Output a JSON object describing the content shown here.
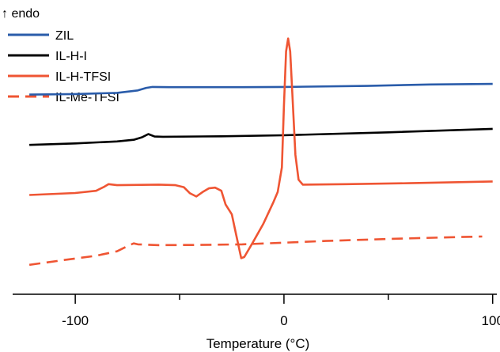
{
  "chart_data": {
    "type": "line",
    "title": "",
    "xlabel": "Temperature (°C)",
    "ylabel": "",
    "annotation": "↑ endo",
    "xlim": [
      -130,
      102
    ],
    "ylim": [
      0,
      10
    ],
    "y_axis_visible": false,
    "grid": false,
    "legend_position": "top-left",
    "xticks": [
      -100,
      0,
      100
    ],
    "xtick_labels": [
      "-100",
      "0",
      "100"
    ],
    "minor_xticks": [
      -50,
      50
    ],
    "series": [
      {
        "name": "ZIL",
        "color": "#2a5caa",
        "dash": "solid",
        "points": [
          [
            -122,
            7.45
          ],
          [
            -100,
            7.47
          ],
          [
            -80,
            7.52
          ],
          [
            -70,
            7.62
          ],
          [
            -66,
            7.72
          ],
          [
            -63,
            7.76
          ],
          [
            -55,
            7.75
          ],
          [
            -20,
            7.75
          ],
          [
            0,
            7.76
          ],
          [
            40,
            7.8
          ],
          [
            70,
            7.86
          ],
          [
            100,
            7.88
          ]
        ]
      },
      {
        "name": "IL-H-I",
        "color": "#000000",
        "dash": "solid",
        "points": [
          [
            -122,
            5.41
          ],
          [
            -100,
            5.47
          ],
          [
            -80,
            5.55
          ],
          [
            -72,
            5.62
          ],
          [
            -68,
            5.72
          ],
          [
            -65,
            5.85
          ],
          [
            -62,
            5.75
          ],
          [
            -58,
            5.74
          ],
          [
            -30,
            5.76
          ],
          [
            0,
            5.8
          ],
          [
            50,
            5.92
          ],
          [
            100,
            6.06
          ]
        ]
      },
      {
        "name": "IL-H-TFSI",
        "color": "#ef5533",
        "dash": "solid",
        "points": [
          [
            -122,
            3.38
          ],
          [
            -100,
            3.46
          ],
          [
            -90,
            3.55
          ],
          [
            -86,
            3.72
          ],
          [
            -84,
            3.82
          ],
          [
            -80,
            3.78
          ],
          [
            -60,
            3.8
          ],
          [
            -52,
            3.78
          ],
          [
            -48,
            3.7
          ],
          [
            -45,
            3.45
          ],
          [
            -42,
            3.32
          ],
          [
            -39,
            3.5
          ],
          [
            -36,
            3.65
          ],
          [
            -33,
            3.68
          ],
          [
            -30,
            3.55
          ],
          [
            -28,
            3.0
          ],
          [
            -25,
            2.6
          ],
          [
            -23,
            1.8
          ],
          [
            -20.5,
            0.82
          ],
          [
            -19,
            0.87
          ],
          [
            -15,
            1.45
          ],
          [
            -10,
            2.2
          ],
          [
            -5,
            3.1
          ],
          [
            -3,
            3.5
          ],
          [
            -1,
            4.5
          ],
          [
            0,
            7.0
          ],
          [
            1,
            9.2
          ],
          [
            2,
            9.72
          ],
          [
            3,
            9.2
          ],
          [
            4,
            7.5
          ],
          [
            5.5,
            5.0
          ],
          [
            7,
            4.0
          ],
          [
            9,
            3.8
          ],
          [
            30,
            3.82
          ],
          [
            60,
            3.86
          ],
          [
            100,
            3.93
          ]
        ]
      },
      {
        "name": "IL-Me-TFSI",
        "color": "#ef5533",
        "dash": "dashed",
        "points": [
          [
            -122,
            0.55
          ],
          [
            -105,
            0.75
          ],
          [
            -90,
            0.92
          ],
          [
            -80,
            1.1
          ],
          [
            -74,
            1.35
          ],
          [
            -72,
            1.42
          ],
          [
            -70,
            1.38
          ],
          [
            -60,
            1.35
          ],
          [
            -40,
            1.36
          ],
          [
            -20,
            1.38
          ],
          [
            0,
            1.45
          ],
          [
            20,
            1.52
          ],
          [
            50,
            1.6
          ],
          [
            80,
            1.67
          ],
          [
            95,
            1.7
          ]
        ]
      }
    ]
  }
}
